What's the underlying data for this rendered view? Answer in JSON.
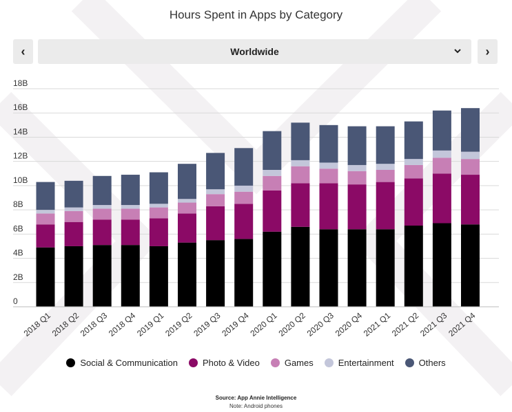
{
  "header": {
    "title": "Hours Spent in Apps by Category"
  },
  "selector": {
    "prev_label": "‹",
    "next_label": "›",
    "region": "Worldwide",
    "chevron": "⌄"
  },
  "chart_data": {
    "type": "bar",
    "stacked": true,
    "title": "Hours Spent in Apps by Category",
    "xlabel": "",
    "ylabel": "",
    "ylim": [
      0,
      18
    ],
    "y_ticks": [
      "0",
      "2B",
      "4B",
      "6B",
      "8B",
      "10B",
      "12B",
      "14B",
      "16B",
      "18B"
    ],
    "y_tick_values": [
      0,
      2,
      4,
      6,
      8,
      10,
      12,
      14,
      16,
      18
    ],
    "grid": true,
    "legend_position": "bottom",
    "categories": [
      "2018 Q1",
      "2018 Q2",
      "2018 Q3",
      "2018 Q4",
      "2019 Q1",
      "2019 Q2",
      "2019 Q3",
      "2019 Q4",
      "2020 Q1",
      "2020 Q2",
      "2020 Q3",
      "2020 Q4",
      "2021 Q1",
      "2021 Q2",
      "2021 Q3",
      "2021 Q4"
    ],
    "series": [
      {
        "name": "Social & Communication",
        "color": "#000000",
        "values": [
          4.9,
          5.0,
          5.1,
          5.1,
          5.0,
          5.3,
          5.5,
          5.6,
          6.2,
          6.6,
          6.4,
          6.4,
          6.4,
          6.7,
          6.9,
          6.8
        ]
      },
      {
        "name": "Photo & Video",
        "color": "#8b0a66",
        "values": [
          1.9,
          2.0,
          2.1,
          2.1,
          2.3,
          2.4,
          2.8,
          2.9,
          3.4,
          3.6,
          3.8,
          3.7,
          3.9,
          3.9,
          4.1,
          4.1
        ]
      },
      {
        "name": "Games",
        "color": "#c77fb5",
        "values": [
          0.9,
          0.9,
          0.9,
          0.9,
          0.9,
          0.9,
          1.0,
          1.0,
          1.2,
          1.4,
          1.2,
          1.1,
          1.0,
          1.1,
          1.3,
          1.3
        ]
      },
      {
        "name": "Entertainment",
        "color": "#c3c6da",
        "values": [
          0.3,
          0.3,
          0.3,
          0.3,
          0.3,
          0.3,
          0.4,
          0.5,
          0.5,
          0.5,
          0.5,
          0.5,
          0.5,
          0.5,
          0.6,
          0.6
        ]
      },
      {
        "name": "Others",
        "color": "#4a5776",
        "values": [
          2.3,
          2.2,
          2.4,
          2.5,
          2.6,
          2.9,
          3.0,
          3.1,
          3.2,
          3.1,
          3.1,
          3.2,
          3.1,
          3.1,
          3.3,
          3.6
        ]
      }
    ]
  },
  "footer": {
    "source": "Source: App Annie Intelligence",
    "note": "Note: Android phones"
  }
}
